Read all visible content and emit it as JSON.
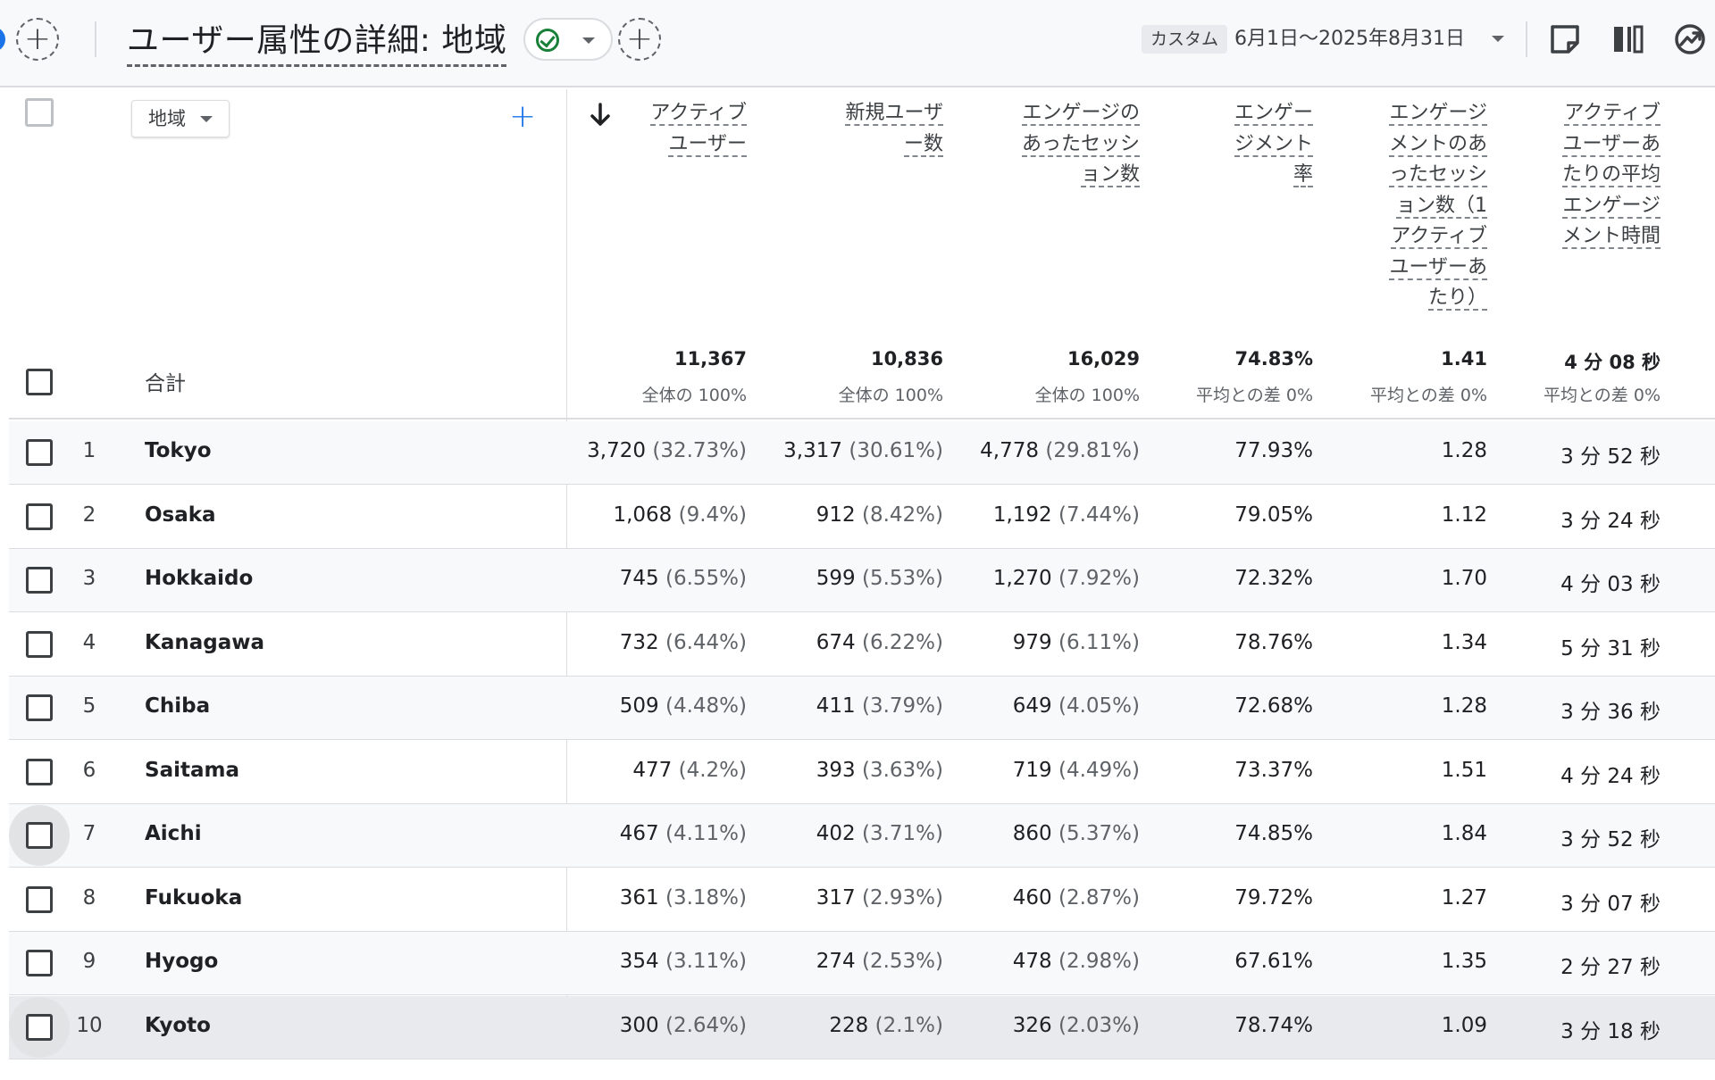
{
  "header": {
    "title": "ユーザー属性の詳細: 地域",
    "custom_badge": "カスタム",
    "date_range": "6月1日～2025年8月31日"
  },
  "icons": {
    "add_comparison": "plus-circle-icon",
    "status": "check-circle-icon",
    "share": "note-icon",
    "compare": "columns-icon",
    "insights": "trending-icon"
  },
  "colors": {
    "accent": "#1a73e8",
    "success": "#188038",
    "border": "#dadce0"
  },
  "table": {
    "dimension_label": "地域",
    "total_label": "合計",
    "columns": [
      {
        "lines": [
          "アクティブ",
          "ユーザー"
        ]
      },
      {
        "lines": [
          "新規ユーザ",
          "ー数"
        ]
      },
      {
        "lines": [
          "エンゲージの",
          "あったセッシ",
          "ョン数"
        ]
      },
      {
        "lines": [
          "エンゲー",
          "ジメント",
          "率"
        ]
      },
      {
        "lines": [
          "エンゲージ",
          "メントのあ",
          "ったセッシ",
          "ョン数（1",
          "アクティブ",
          "ユーザーあ",
          "たり）"
        ]
      },
      {
        "lines": [
          "アクティブ",
          "ユーザーあ",
          "たりの平均",
          "エンゲージ",
          "メント時間"
        ]
      }
    ],
    "totals": [
      {
        "value": "11,367",
        "sub": "全体の 100%"
      },
      {
        "value": "10,836",
        "sub": "全体の 100%"
      },
      {
        "value": "16,029",
        "sub": "全体の 100%"
      },
      {
        "value": "74.83%",
        "sub": "平均との差 0%"
      },
      {
        "value": "1.41",
        "sub": "平均との差 0%"
      },
      {
        "value": "4 分 08 秒",
        "sub": "平均との差 0%"
      }
    ],
    "rows": [
      {
        "rank": "1",
        "region": "Tokyo",
        "active": "3,720",
        "active_pct": "(32.73%)",
        "new": "3,317",
        "new_pct": "(30.61%)",
        "sessions": "4,778",
        "sessions_pct": "(29.81%)",
        "rate": "77.93%",
        "per_user": "1.28",
        "time": "3 分 52 秒"
      },
      {
        "rank": "2",
        "region": "Osaka",
        "active": "1,068",
        "active_pct": "(9.4%)",
        "new": "912",
        "new_pct": "(8.42%)",
        "sessions": "1,192",
        "sessions_pct": "(7.44%)",
        "rate": "79.05%",
        "per_user": "1.12",
        "time": "3 分 24 秒"
      },
      {
        "rank": "3",
        "region": "Hokkaido",
        "active": "745",
        "active_pct": "(6.55%)",
        "new": "599",
        "new_pct": "(5.53%)",
        "sessions": "1,270",
        "sessions_pct": "(7.92%)",
        "rate": "72.32%",
        "per_user": "1.70",
        "time": "4 分 03 秒"
      },
      {
        "rank": "4",
        "region": "Kanagawa",
        "active": "732",
        "active_pct": "(6.44%)",
        "new": "674",
        "new_pct": "(6.22%)",
        "sessions": "979",
        "sessions_pct": "(6.11%)",
        "rate": "78.76%",
        "per_user": "1.34",
        "time": "5 分 31 秒"
      },
      {
        "rank": "5",
        "region": "Chiba",
        "active": "509",
        "active_pct": "(4.48%)",
        "new": "411",
        "new_pct": "(3.79%)",
        "sessions": "649",
        "sessions_pct": "(4.05%)",
        "rate": "72.68%",
        "per_user": "1.28",
        "time": "3 分 36 秒"
      },
      {
        "rank": "6",
        "region": "Saitama",
        "active": "477",
        "active_pct": "(4.2%)",
        "new": "393",
        "new_pct": "(3.63%)",
        "sessions": "719",
        "sessions_pct": "(4.49%)",
        "rate": "73.37%",
        "per_user": "1.51",
        "time": "4 分 24 秒"
      },
      {
        "rank": "7",
        "region": "Aichi",
        "active": "467",
        "active_pct": "(4.11%)",
        "new": "402",
        "new_pct": "(3.71%)",
        "sessions": "860",
        "sessions_pct": "(5.37%)",
        "rate": "74.85%",
        "per_user": "1.84",
        "time": "3 分 52 秒"
      },
      {
        "rank": "8",
        "region": "Fukuoka",
        "active": "361",
        "active_pct": "(3.18%)",
        "new": "317",
        "new_pct": "(2.93%)",
        "sessions": "460",
        "sessions_pct": "(2.87%)",
        "rate": "79.72%",
        "per_user": "1.27",
        "time": "3 分 07 秒"
      },
      {
        "rank": "9",
        "region": "Hyogo",
        "active": "354",
        "active_pct": "(3.11%)",
        "new": "274",
        "new_pct": "(2.53%)",
        "sessions": "478",
        "sessions_pct": "(2.98%)",
        "rate": "67.61%",
        "per_user": "1.35",
        "time": "2 分 27 秒"
      },
      {
        "rank": "10",
        "region": "Kyoto",
        "active": "300",
        "active_pct": "(2.64%)",
        "new": "228",
        "new_pct": "(2.1%)",
        "sessions": "326",
        "sessions_pct": "(2.03%)",
        "rate": "78.74%",
        "per_user": "1.09",
        "time": "3 分 18 秒"
      }
    ]
  }
}
